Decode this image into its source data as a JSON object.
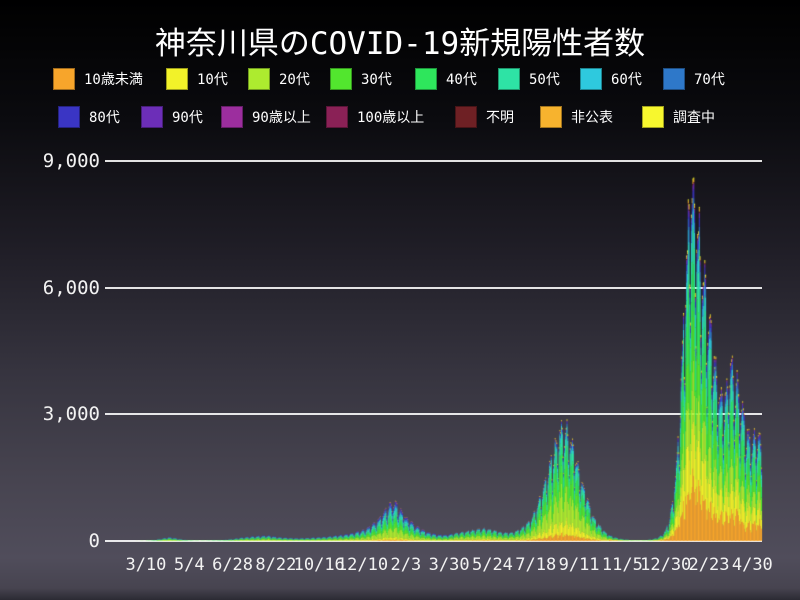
{
  "title": "神奈川県のCOVID-19新規陽性者数",
  "legend": {
    "row1": [
      {
        "label": "10歳未満",
        "color": "#F7A52B"
      },
      {
        "label": "10代",
        "color": "#F2F229"
      },
      {
        "label": "20代",
        "color": "#ADEB2F"
      },
      {
        "label": "30代",
        "color": "#52E62E"
      },
      {
        "label": "40代",
        "color": "#2EE65C"
      },
      {
        "label": "50代",
        "color": "#2EE3A5"
      },
      {
        "label": "60代",
        "color": "#2EC9DE"
      },
      {
        "label": "70代",
        "color": "#2E78C9"
      }
    ],
    "row2": [
      {
        "label": "80代",
        "color": "#3A35C4"
      },
      {
        "label": "90代",
        "color": "#6C2EB8"
      },
      {
        "label": "90歳以上",
        "color": "#9C2E9E"
      },
      {
        "label": "100歳以上",
        "color": "#8A2156"
      },
      {
        "label": "不明",
        "color": "#6E2024"
      },
      {
        "label": "非公表",
        "color": "#F7B32E"
      },
      {
        "label": "調査中",
        "color": "#F7F72E"
      }
    ]
  },
  "chart_data": {
    "type": "bar",
    "subtype": "stacked-daily",
    "title": "神奈川県のCOVID-19新規陽性者数",
    "ylabel": "",
    "xlabel": "",
    "y_max": 9000,
    "y_gridline_values": [
      9000,
      6000,
      3000,
      0
    ],
    "y_tick_labels": [
      "9,000",
      "6,000",
      "3,000",
      "0"
    ],
    "x_tick_labels": [
      "3/10",
      "5/4",
      "6/28",
      "8/22",
      "10/16",
      "12/10",
      "2/3",
      "3/30",
      "5/24",
      "7/18",
      "9/11",
      "11/5",
      "12/30",
      "2/23",
      "4/30"
    ],
    "x_tick_interval_days": 55,
    "x_tick_first_day_index": 52,
    "total_days": 834,
    "series": [
      "10歳未満",
      "10代",
      "20代",
      "30代",
      "40代",
      "50代",
      "60代",
      "70代",
      "80代",
      "90代",
      "90歳以上",
      "100歳以上",
      "不明",
      "非公表",
      "調査中"
    ],
    "series_colors": [
      "#F7A52B",
      "#F2F229",
      "#ADEB2F",
      "#52E62E",
      "#2EE65C",
      "#2EE3A5",
      "#2EC9DE",
      "#2E78C9",
      "#3A35C4",
      "#6C2EB8",
      "#9C2E9E",
      "#8A2156",
      "#6E2024",
      "#F7B32E",
      "#F7F72E"
    ],
    "daily_total_envelope": [
      [
        0,
        1
      ],
      [
        14,
        2
      ],
      [
        28,
        3
      ],
      [
        42,
        6
      ],
      [
        52,
        10
      ],
      [
        60,
        22
      ],
      [
        68,
        45
      ],
      [
        75,
        75
      ],
      [
        82,
        95
      ],
      [
        88,
        70
      ],
      [
        96,
        42
      ],
      [
        104,
        25
      ],
      [
        112,
        15
      ],
      [
        120,
        11
      ],
      [
        128,
        13
      ],
      [
        136,
        17
      ],
      [
        144,
        22
      ],
      [
        152,
        30
      ],
      [
        160,
        45
      ],
      [
        168,
        68
      ],
      [
        176,
        88
      ],
      [
        186,
        110
      ],
      [
        196,
        125
      ],
      [
        204,
        135
      ],
      [
        212,
        115
      ],
      [
        220,
        92
      ],
      [
        228,
        80
      ],
      [
        236,
        72
      ],
      [
        244,
        66
      ],
      [
        252,
        70
      ],
      [
        260,
        78
      ],
      [
        268,
        88
      ],
      [
        276,
        98
      ],
      [
        284,
        112
      ],
      [
        292,
        128
      ],
      [
        300,
        150
      ],
      [
        308,
        175
      ],
      [
        316,
        205
      ],
      [
        324,
        245
      ],
      [
        332,
        310
      ],
      [
        340,
        420
      ],
      [
        348,
        580
      ],
      [
        356,
        780
      ],
      [
        362,
        920
      ],
      [
        365,
        980
      ],
      [
        369,
        910
      ],
      [
        374,
        780
      ],
      [
        380,
        640
      ],
      [
        386,
        520
      ],
      [
        392,
        410
      ],
      [
        398,
        330
      ],
      [
        404,
        265
      ],
      [
        410,
        215
      ],
      [
        416,
        180
      ],
      [
        422,
        160
      ],
      [
        428,
        152
      ],
      [
        434,
        158
      ],
      [
        440,
        172
      ],
      [
        446,
        190
      ],
      [
        452,
        212
      ],
      [
        458,
        235
      ],
      [
        464,
        258
      ],
      [
        470,
        278
      ],
      [
        476,
        295
      ],
      [
        481,
        302
      ],
      [
        486,
        290
      ],
      [
        492,
        262
      ],
      [
        498,
        232
      ],
      [
        504,
        208
      ],
      [
        510,
        198
      ],
      [
        516,
        210
      ],
      [
        522,
        248
      ],
      [
        528,
        310
      ],
      [
        534,
        400
      ],
      [
        540,
        540
      ],
      [
        546,
        760
      ],
      [
        552,
        1050
      ],
      [
        558,
        1420
      ],
      [
        564,
        1850
      ],
      [
        570,
        2300
      ],
      [
        576,
        2680
      ],
      [
        581,
        2880
      ],
      [
        586,
        2740
      ],
      [
        591,
        2480
      ],
      [
        596,
        2150
      ],
      [
        601,
        1780
      ],
      [
        606,
        1420
      ],
      [
        611,
        1090
      ],
      [
        616,
        810
      ],
      [
        621,
        580
      ],
      [
        626,
        410
      ],
      [
        631,
        285
      ],
      [
        636,
        195
      ],
      [
        641,
        135
      ],
      [
        646,
        95
      ],
      [
        651,
        68
      ],
      [
        656,
        48
      ],
      [
        661,
        36
      ],
      [
        666,
        28
      ],
      [
        671,
        23
      ],
      [
        676,
        21
      ],
      [
        681,
        22
      ],
      [
        686,
        26
      ],
      [
        691,
        34
      ],
      [
        696,
        50
      ],
      [
        701,
        80
      ],
      [
        706,
        140
      ],
      [
        711,
        260
      ],
      [
        716,
        520
      ],
      [
        721,
        1050
      ],
      [
        725,
        1900
      ],
      [
        729,
        3200
      ],
      [
        733,
        4900
      ],
      [
        737,
        6700
      ],
      [
        741,
        8200
      ],
      [
        744,
        8900
      ],
      [
        747,
        8700
      ],
      [
        750,
        8200
      ],
      [
        753,
        7700
      ],
      [
        756,
        7200
      ],
      [
        759,
        6700
      ],
      [
        762,
        6200
      ],
      [
        765,
        5750
      ],
      [
        768,
        5300
      ],
      [
        771,
        4850
      ],
      [
        774,
        4450
      ],
      [
        777,
        4100
      ],
      [
        780,
        3800
      ],
      [
        783,
        3600
      ],
      [
        786,
        3650
      ],
      [
        789,
        3900
      ],
      [
        792,
        4150
      ],
      [
        795,
        4300
      ],
      [
        798,
        4250
      ],
      [
        801,
        4000
      ],
      [
        804,
        3700
      ],
      [
        807,
        3400
      ],
      [
        810,
        3100
      ],
      [
        813,
        2850
      ],
      [
        816,
        2650
      ],
      [
        819,
        2550
      ],
      [
        822,
        2600
      ],
      [
        825,
        2700
      ],
      [
        828,
        2650
      ],
      [
        831,
        2500
      ],
      [
        833,
        2450
      ]
    ],
    "weekday_factors": [
      0.72,
      0.58,
      0.85,
      0.96,
      1.0,
      1.02,
      0.98
    ],
    "age_share_periods": [
      {
        "until_day": 300,
        "shares": [
          2.5,
          6,
          26,
          17,
          15,
          12,
          8,
          6.5,
          4.5,
          2,
          0.4,
          0.05,
          0.15,
          0.5,
          0.4
        ]
      },
      {
        "until_day": 440,
        "shares": [
          3.5,
          7,
          22,
          16,
          15,
          13,
          8.5,
          6,
          5,
          2.5,
          0.5,
          0.08,
          0.15,
          0.6,
          0.5
        ]
      },
      {
        "until_day": 640,
        "shares": [
          6,
          11,
          26,
          19,
          16,
          12,
          4.5,
          2.2,
          1.3,
          0.6,
          0.15,
          0.03,
          0.12,
          0.7,
          0.6
        ]
      },
      {
        "until_day": 834,
        "shares": [
          16,
          15,
          13.5,
          15,
          16,
          10.5,
          5,
          3.3,
          2.3,
          1.1,
          0.3,
          0.05,
          0.3,
          0.8,
          0.5
        ]
      }
    ]
  }
}
